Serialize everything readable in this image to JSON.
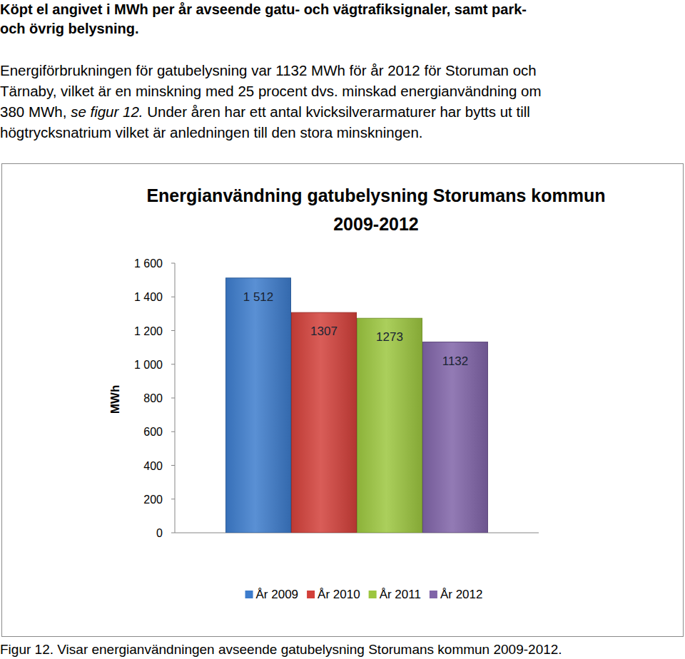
{
  "chart_data": {
    "type": "bar",
    "title": "Energianvändning gatubelysning Storumans kommun 2009-2012",
    "y_label": "MWh",
    "categories": [
      null
    ],
    "series": [
      {
        "name": "År 2009",
        "color": "#3d7ccc",
        "values": [
          1512
        ],
        "value_labels": [
          "1 512"
        ]
      },
      {
        "name": "År 2010",
        "color": "#d2403a",
        "values": [
          1307
        ]
      },
      {
        "name": "År 2011",
        "color": "#9cc63f",
        "values": [
          1273
        ]
      },
      {
        "name": "År 2012",
        "color": "#8064a8",
        "values": [
          1132
        ]
      }
    ],
    "ylim": [
      0,
      1600
    ],
    "yticks": [
      0,
      200,
      400,
      600,
      800,
      {
        "value": 1000,
        "label": "1 000"
      },
      {
        "value": 1200,
        "label": "1 200"
      },
      {
        "value": 1400,
        "label": "1 400"
      },
      {
        "value": 1600,
        "label": "1 600"
      }
    ],
    "grid": false,
    "legend": "bottom",
    "data_labels": true,
    "annotations": [
      "Köpt el angivet i MWh per år avseende gatu- och vägtrafiksignaler, samt park-",
      "och övrig belysning.",
      "Energiförbrukningen för gatubelysning var 1132 MWh för år 2012 för Storuman och",
      "Tärnaby, vilket är en minskning med 25 procent dvs. minskad energianvändning om",
      "380 MWh, ",
      "se figur 12.",
      " Under åren har ett antal kvicksilverarmaturer har bytts ut till",
      "högtrycksnatrium vilket är anledningen till den stora minskningen.",
      "Figur 12. Visar energianvändningen avseende gatubelysning Storumans kommun 2009-2012."
    ]
  }
}
